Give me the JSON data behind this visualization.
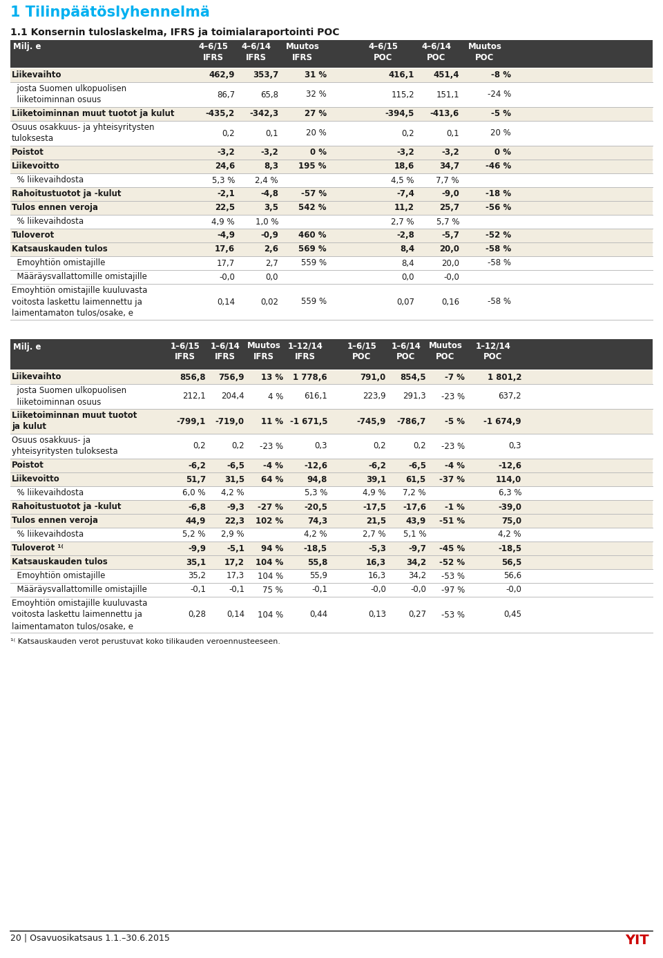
{
  "title1": "1 Tilinpäätöslyhennelmä",
  "title2": "1.1 Konsernin tuloslaskelma, IFRS ja toimialaraportointi POC",
  "header_bg": "#3d3d3d",
  "row_bg_light": "#f2ede0",
  "row_bg_white": "#ffffff",
  "body_text": "#1a1a1a",
  "title1_color": "#00b0f0",
  "table1_rows": [
    {
      "label": "Liikevaihto",
      "bold": true,
      "shaded": true,
      "multiline": false,
      "vals": [
        "462,9",
        "353,7",
        "31 %",
        "416,1",
        "451,4",
        "-8 %"
      ]
    },
    {
      "label": "  josta Suomen ulkopuolisen\n  liiketoiminnan osuus",
      "bold": false,
      "shaded": false,
      "multiline": true,
      "vals": [
        "86,7",
        "65,8",
        "32 %",
        "115,2",
        "151,1",
        "-24 %"
      ]
    },
    {
      "label": "Liiketoiminnan muut tuotot ja kulut",
      "bold": true,
      "shaded": true,
      "multiline": false,
      "vals": [
        "-435,2",
        "-342,3",
        "27 %",
        "-394,5",
        "-413,6",
        "-5 %"
      ]
    },
    {
      "label": "Osuus osakkuus- ja yhteisyritysten\ntuloksesta",
      "bold": false,
      "shaded": false,
      "multiline": true,
      "vals": [
        "0,2",
        "0,1",
        "20 %",
        "0,2",
        "0,1",
        "20 %"
      ]
    },
    {
      "label": "Poistot",
      "bold": true,
      "shaded": true,
      "multiline": false,
      "vals": [
        "-3,2",
        "-3,2",
        "0 %",
        "-3,2",
        "-3,2",
        "0 %"
      ]
    },
    {
      "label": "Liikevoitto",
      "bold": true,
      "shaded": true,
      "multiline": false,
      "vals": [
        "24,6",
        "8,3",
        "195 %",
        "18,6",
        "34,7",
        "-46 %"
      ]
    },
    {
      "label": "  % liikevaihdosta",
      "bold": false,
      "shaded": false,
      "multiline": false,
      "vals": [
        "5,3 %",
        "2,4 %",
        "",
        "4,5 %",
        "7,7 %",
        ""
      ]
    },
    {
      "label": "Rahoitustuotot ja -kulut",
      "bold": true,
      "shaded": true,
      "multiline": false,
      "vals": [
        "-2,1",
        "-4,8",
        "-57 %",
        "-7,4",
        "-9,0",
        "-18 %"
      ]
    },
    {
      "label": "Tulos ennen veroja",
      "bold": true,
      "shaded": true,
      "multiline": false,
      "vals": [
        "22,5",
        "3,5",
        "542 %",
        "11,2",
        "25,7",
        "-56 %"
      ]
    },
    {
      "label": "  % liikevaihdosta",
      "bold": false,
      "shaded": false,
      "multiline": false,
      "vals": [
        "4,9 %",
        "1,0 %",
        "",
        "2,7 %",
        "5,7 %",
        ""
      ]
    },
    {
      "label": "Tuloverot",
      "bold": true,
      "shaded": true,
      "multiline": false,
      "vals": [
        "-4,9",
        "-0,9",
        "460 %",
        "-2,8",
        "-5,7",
        "-52 %"
      ]
    },
    {
      "label": "Katsauskauden tulos",
      "bold": true,
      "shaded": true,
      "multiline": false,
      "vals": [
        "17,6",
        "2,6",
        "569 %",
        "8,4",
        "20,0",
        "-58 %"
      ]
    },
    {
      "label": "  Emoyhtiön omistajille",
      "bold": false,
      "shaded": false,
      "multiline": false,
      "vals": [
        "17,7",
        "2,7",
        "559 %",
        "8,4",
        "20,0",
        "-58 %"
      ]
    },
    {
      "label": "  Määräysvallattomille omistajille",
      "bold": false,
      "shaded": false,
      "multiline": false,
      "vals": [
        "-0,0",
        "0,0",
        "",
        "0,0",
        "-0,0",
        ""
      ]
    },
    {
      "label": "Emoyhtiön omistajille kuuluvasta\nvoitosta laskettu laimennettu ja\nlaimentamaton tulos/osake, e",
      "bold": false,
      "shaded": false,
      "multiline": true,
      "vals": [
        "0,14",
        "0,02",
        "559 %",
        "0,07",
        "0,16",
        "-58 %"
      ]
    }
  ],
  "table2_rows": [
    {
      "label": "Liikevaihto",
      "bold": true,
      "shaded": true,
      "multiline": false,
      "vals": [
        "856,8",
        "756,9",
        "13 %",
        "1 778,6",
        "791,0",
        "854,5",
        "-7 %",
        "1 801,2"
      ]
    },
    {
      "label": "  josta Suomen ulkopuolisen\n  liiketoiminnan osuus",
      "bold": false,
      "shaded": false,
      "multiline": true,
      "vals": [
        "212,1",
        "204,4",
        "4 %",
        "616,1",
        "223,9",
        "291,3",
        "-23 %",
        "637,2"
      ]
    },
    {
      "label": "Liiketoiminnan muut tuotot\nja kulut",
      "bold": true,
      "shaded": true,
      "multiline": true,
      "vals": [
        "-799,1",
        "-719,0",
        "11 %",
        "-1 671,5",
        "-745,9",
        "-786,7",
        "-5 %",
        "-1 674,9"
      ]
    },
    {
      "label": "Osuus osakkuus- ja\nyhteisyritysten tuloksesta",
      "bold": false,
      "shaded": false,
      "multiline": true,
      "vals": [
        "0,2",
        "0,2",
        "-23 %",
        "0,3",
        "0,2",
        "0,2",
        "-23 %",
        "0,3"
      ]
    },
    {
      "label": "Poistot",
      "bold": true,
      "shaded": true,
      "multiline": false,
      "vals": [
        "-6,2",
        "-6,5",
        "-4 %",
        "-12,6",
        "-6,2",
        "-6,5",
        "-4 %",
        "-12,6"
      ]
    },
    {
      "label": "Liikevoitto",
      "bold": true,
      "shaded": true,
      "multiline": false,
      "vals": [
        "51,7",
        "31,5",
        "64 %",
        "94,8",
        "39,1",
        "61,5",
        "-37 %",
        "114,0"
      ]
    },
    {
      "label": "  % liikevaihdosta",
      "bold": false,
      "shaded": false,
      "multiline": false,
      "vals": [
        "6,0 %",
        "4,2 %",
        "",
        "5,3 %",
        "4,9 %",
        "7,2 %",
        "",
        "6,3 %"
      ]
    },
    {
      "label": "Rahoitustuotot ja -kulut",
      "bold": true,
      "shaded": true,
      "multiline": false,
      "vals": [
        "-6,8",
        "-9,3",
        "-27 %",
        "-20,5",
        "-17,5",
        "-17,6",
        "-1 %",
        "-39,0"
      ]
    },
    {
      "label": "Tulos ennen veroja",
      "bold": true,
      "shaded": true,
      "multiline": false,
      "vals": [
        "44,9",
        "22,3",
        "102 %",
        "74,3",
        "21,5",
        "43,9",
        "-51 %",
        "75,0"
      ]
    },
    {
      "label": "  % liikevaihdosta",
      "bold": false,
      "shaded": false,
      "multiline": false,
      "vals": [
        "5,2 %",
        "2,9 %",
        "",
        "4,2 %",
        "2,7 %",
        "5,1 %",
        "",
        "4,2 %"
      ]
    },
    {
      "label": "Tuloverot ¹⁽",
      "bold": true,
      "shaded": true,
      "multiline": false,
      "vals": [
        "-9,9",
        "-5,1",
        "94 %",
        "-18,5",
        "-5,3",
        "-9,7",
        "-45 %",
        "-18,5"
      ]
    },
    {
      "label": "Katsauskauden tulos",
      "bold": true,
      "shaded": true,
      "multiline": false,
      "vals": [
        "35,1",
        "17,2",
        "104 %",
        "55,8",
        "16,3",
        "34,2",
        "-52 %",
        "56,5"
      ]
    },
    {
      "label": "  Emoyhtiön omistajille",
      "bold": false,
      "shaded": false,
      "multiline": false,
      "vals": [
        "35,2",
        "17,3",
        "104 %",
        "55,9",
        "16,3",
        "34,2",
        "-53 %",
        "56,6"
      ]
    },
    {
      "label": "  Määräysvallattomille omistajille",
      "bold": false,
      "shaded": false,
      "multiline": false,
      "vals": [
        "-0,1",
        "-0,1",
        "75 %",
        "-0,1",
        "-0,0",
        "-0,0",
        "-97 %",
        "-0,0"
      ]
    },
    {
      "label": "Emoyhtiön omistajille kuuluvasta\nvoitosta laskettu laimennettu ja\nlaimentamaton tulos/osake, e",
      "bold": false,
      "shaded": false,
      "multiline": true,
      "vals": [
        "0,28",
        "0,14",
        "104 %",
        "0,44",
        "0,13",
        "0,27",
        "-53 %",
        "0,45"
      ]
    }
  ],
  "footnote": "¹⁽ Katsauskauden verot perustuvat koko tilikauden veroennusteeseen.",
  "footer_text": "20 | Osavuosikatsaus 1.1.–30.6.2015",
  "footer_logo": "YIT"
}
